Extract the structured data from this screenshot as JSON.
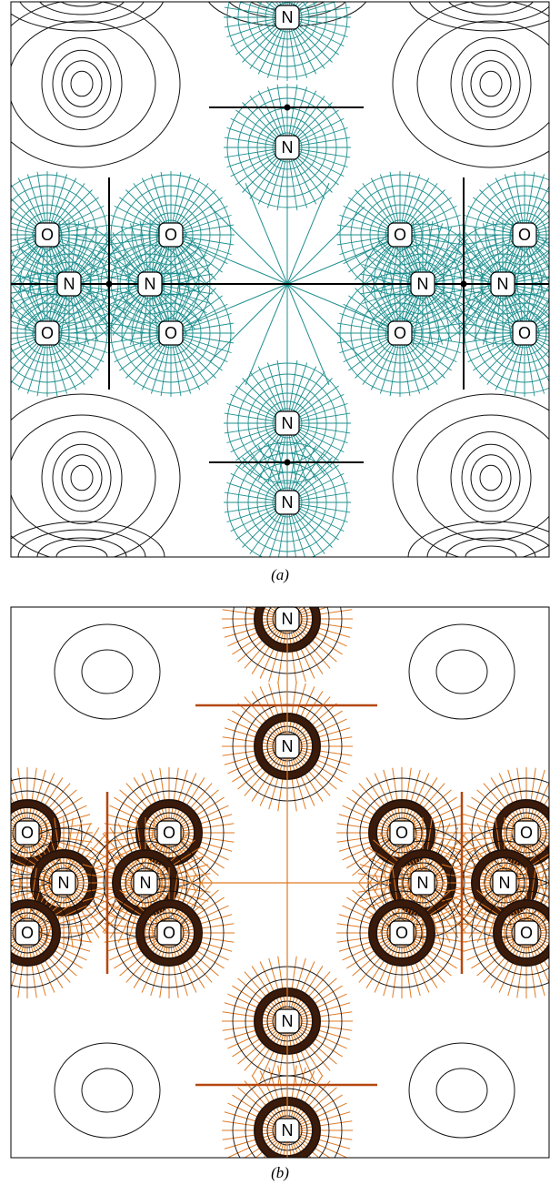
{
  "panels": [
    {
      "caption": "(a)",
      "atoms": [
        "N",
        "N",
        "O",
        "O",
        "O",
        "O",
        "N",
        "N",
        "N",
        "N",
        "O",
        "O",
        "O",
        "O",
        "N",
        "N"
      ]
    },
    {
      "caption": "(b)",
      "atoms": [
        "N",
        "N",
        "O",
        "O",
        "O",
        "O",
        "N",
        "N",
        "N",
        "N",
        "O",
        "O",
        "O",
        "O",
        "N",
        "N"
      ]
    }
  ]
}
